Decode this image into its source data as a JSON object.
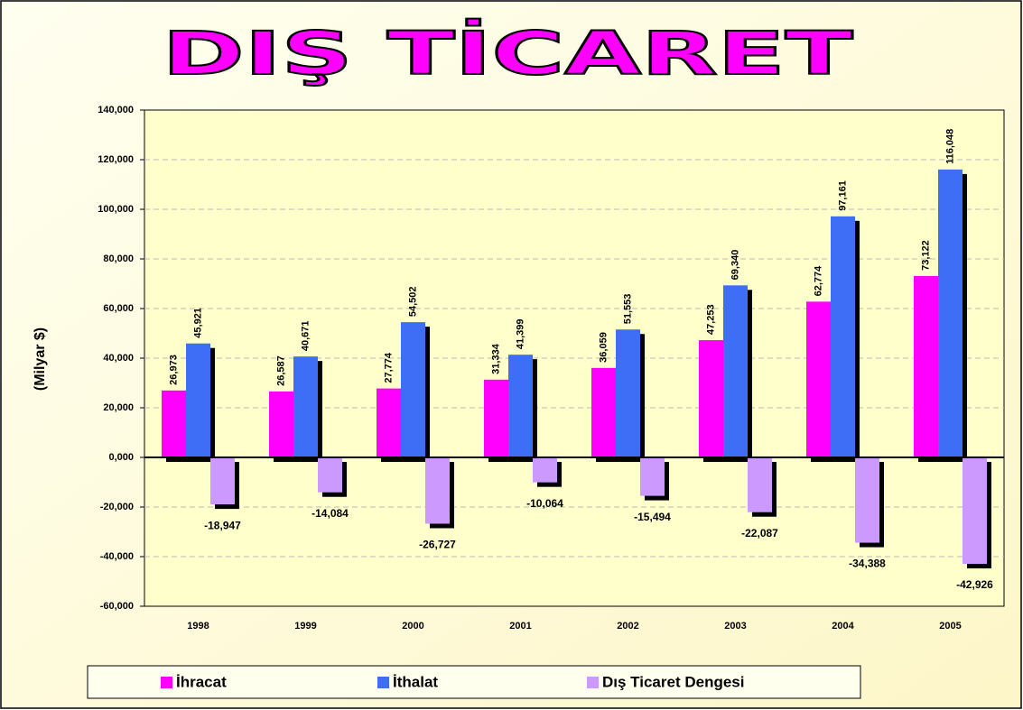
{
  "chart_data": {
    "type": "bar",
    "title": "DIŞ TİCARET",
    "ylabel": "(Milyar $)",
    "categories": [
      "1998",
      "1999",
      "2000",
      "2001",
      "2002",
      "2003",
      "2004",
      "2005"
    ],
    "series": [
      {
        "name": "İhracat",
        "color": "#ff00ff",
        "values": [
          26.973,
          26.587,
          27.774,
          31.334,
          36.059,
          47.253,
          62.774,
          73.122
        ],
        "value_labels": [
          "26,973",
          "26,587",
          "27,774",
          "31,334",
          "36,059",
          "47,253",
          "62,774",
          "73,122"
        ]
      },
      {
        "name": "İthalat",
        "color": "#3d6ef5",
        "values": [
          45.921,
          40.671,
          54.502,
          41.399,
          51.553,
          69.34,
          97.161,
          116.048
        ],
        "value_labels": [
          "45,921",
          "40,671",
          "54,502",
          "41,399",
          "51,553",
          "69,340",
          "97,161",
          "116,048"
        ]
      },
      {
        "name": "Dış Ticaret Dengesi",
        "color": "#cc99ff",
        "values": [
          -18.947,
          -14.084,
          -26.727,
          -10.064,
          -15.494,
          -22.087,
          -34.388,
          -42.926
        ],
        "value_labels": [
          "-18,947",
          "-14,084",
          "-26,727",
          "-10,064",
          "-15,494",
          "-22,087",
          "-34,388",
          "-42,926"
        ]
      }
    ],
    "ylim": [
      -60,
      140
    ],
    "yticks": [
      {
        "value": -60,
        "label": "-60,000"
      },
      {
        "value": -40,
        "label": "-40,000"
      },
      {
        "value": -20,
        "label": "-20,000"
      },
      {
        "value": 0,
        "label": "0,000"
      },
      {
        "value": 20,
        "label": "20,000"
      },
      {
        "value": 40,
        "label": "40,000"
      },
      {
        "value": 60,
        "label": "60,000"
      },
      {
        "value": 80,
        "label": "80,000"
      },
      {
        "value": 100,
        "label": "100,000"
      },
      {
        "value": 120,
        "label": "120,000"
      },
      {
        "value": 140,
        "label": "140,000"
      }
    ],
    "grid": true
  }
}
